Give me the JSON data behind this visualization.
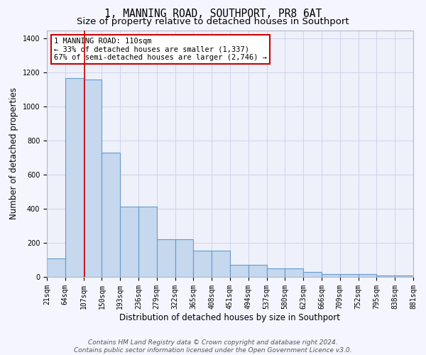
{
  "title": "1, MANNING ROAD, SOUTHPORT, PR8 6AT",
  "subtitle": "Size of property relative to detached houses in Southport",
  "xlabel": "Distribution of detached houses by size in Southport",
  "ylabel": "Number of detached properties",
  "bar_color": "#c5d8ee",
  "bar_edge_color": "#6699cc",
  "background_color": "#eef1fa",
  "grid_color": "#c8cfe8",
  "fig_bg_color": "#f5f5ff",
  "red_line_x": 110,
  "annotation_line1": "1 MANNING ROAD: 110sqm",
  "annotation_line2": "← 33% of detached houses are smaller (1,337)",
  "annotation_line3": "67% of semi-detached houses are larger (2,746) →",
  "bins": [
    21,
    64,
    107,
    150,
    193,
    236,
    279,
    322,
    365,
    408,
    451,
    494,
    537,
    580,
    623,
    666,
    709,
    752,
    795,
    838,
    881
  ],
  "heights": [
    110,
    1170,
    1160,
    730,
    415,
    415,
    220,
    220,
    155,
    155,
    70,
    70,
    50,
    50,
    30,
    15,
    15,
    15,
    10,
    10
  ],
  "ylim": [
    0,
    1450
  ],
  "yticks": [
    0,
    200,
    400,
    600,
    800,
    1000,
    1200,
    1400
  ],
  "footer_text": "Contains HM Land Registry data © Crown copyright and database right 2024.\nContains public sector information licensed under the Open Government Licence v3.0.",
  "title_fontsize": 10.5,
  "subtitle_fontsize": 9.5,
  "ylabel_fontsize": 8.5,
  "xlabel_fontsize": 8.5,
  "tick_fontsize": 7,
  "annot_fontsize": 7.5,
  "footer_fontsize": 6.5
}
